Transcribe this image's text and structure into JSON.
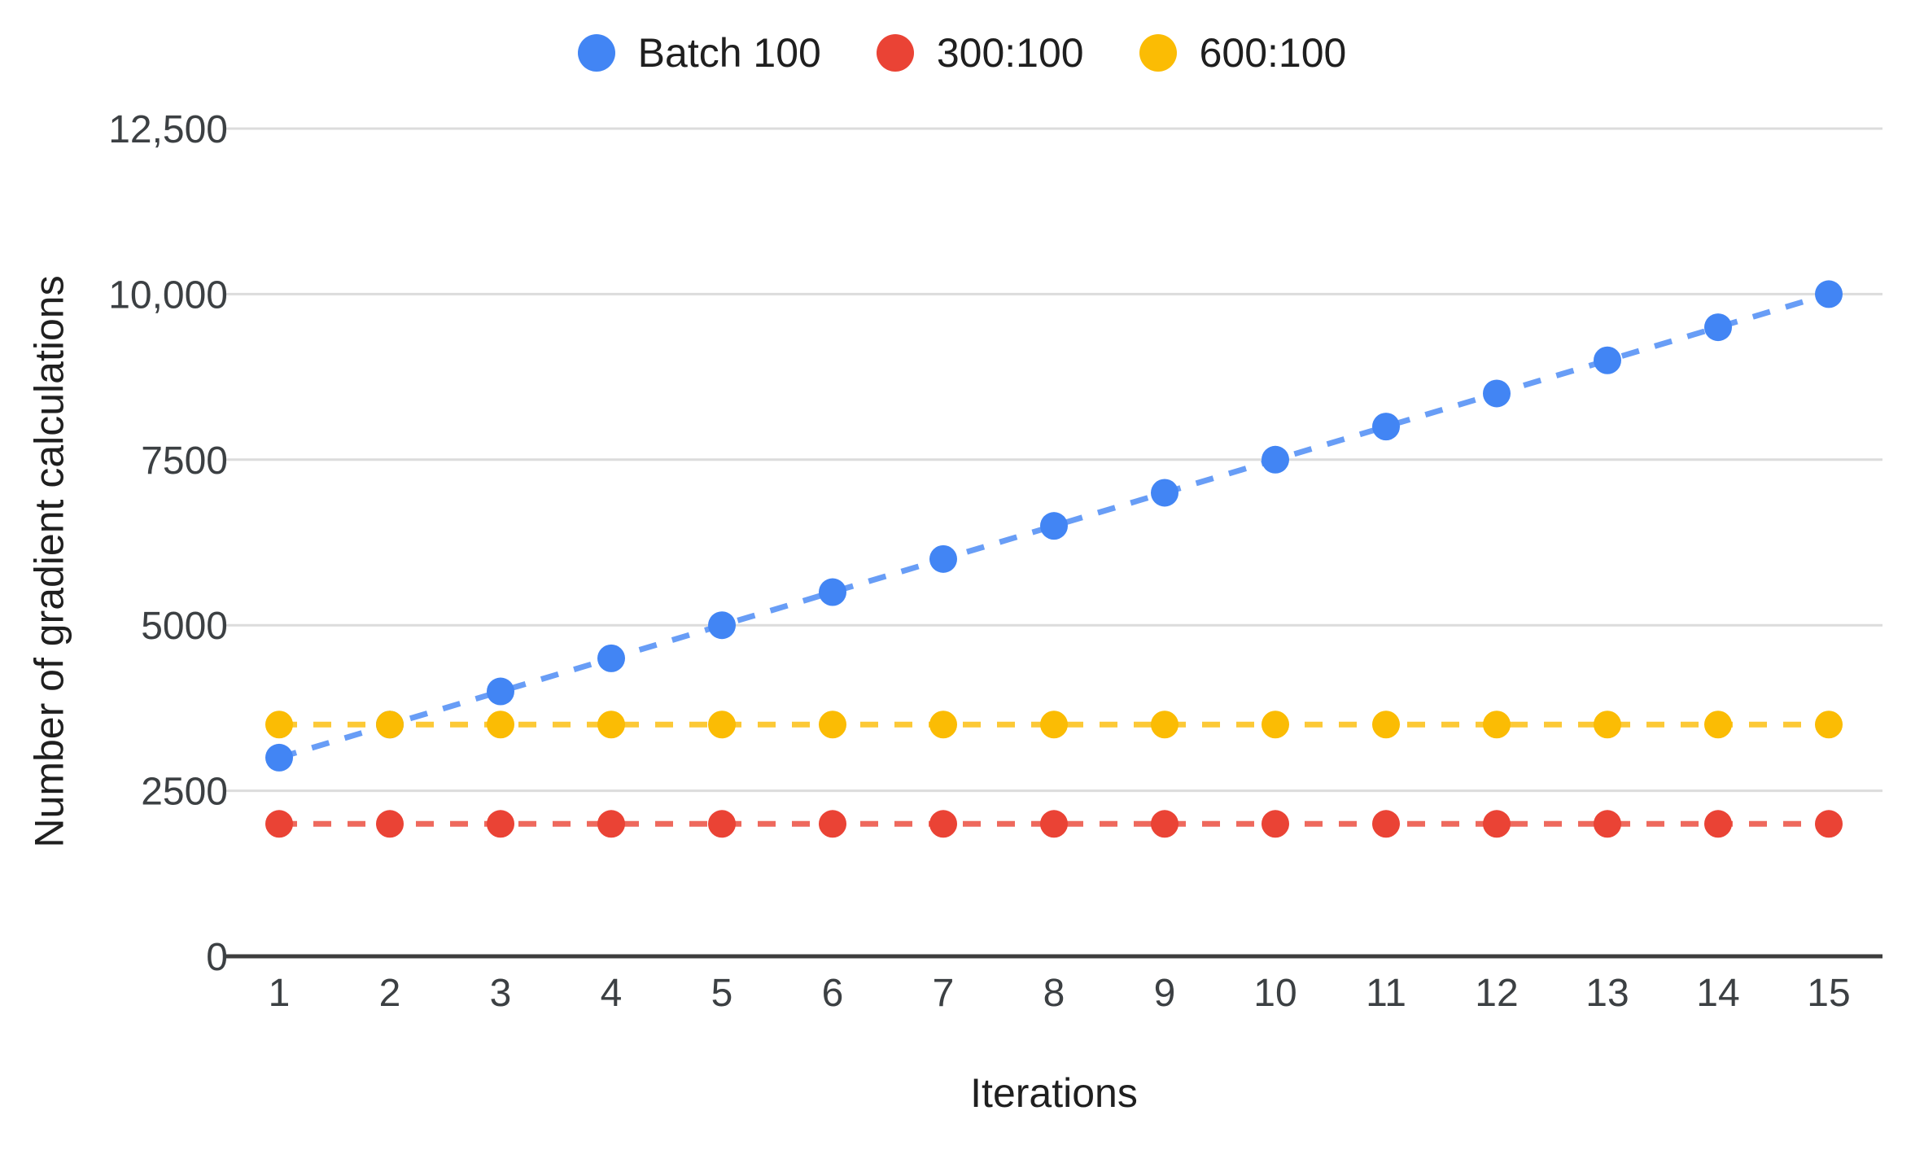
{
  "chart_data": {
    "type": "scatter",
    "title": "",
    "xlabel": "Iterations",
    "ylabel": "Number of gradient calculations",
    "categories": [
      1,
      2,
      3,
      4,
      5,
      6,
      7,
      8,
      9,
      10,
      11,
      12,
      13,
      14,
      15
    ],
    "series": [
      {
        "name": "Batch 100",
        "color": "#4285F4",
        "values": [
          3000,
          3500,
          4000,
          4500,
          5000,
          5500,
          6000,
          6500,
          7000,
          7500,
          8000,
          8500,
          9000,
          9500,
          10000
        ]
      },
      {
        "name": "300:100",
        "color": "#EA4335",
        "values": [
          2000,
          2000,
          2000,
          2000,
          2000,
          2000,
          2000,
          2000,
          2000,
          2000,
          2000,
          2000,
          2000,
          2000,
          2000
        ]
      },
      {
        "name": "600:100",
        "color": "#FBBC04",
        "values": [
          3500,
          3500,
          3500,
          3500,
          3500,
          3500,
          3500,
          3500,
          3500,
          3500,
          3500,
          3500,
          3500,
          3500,
          3500
        ]
      }
    ],
    "ylim": [
      0,
      12500
    ],
    "yticks": [
      {
        "value": 0,
        "label": "0"
      },
      {
        "value": 2500,
        "label": "2500"
      },
      {
        "value": 5000,
        "label": "5000"
      },
      {
        "value": 7500,
        "label": "7500"
      },
      {
        "value": 10000,
        "label": "10,000"
      },
      {
        "value": 12500,
        "label": "12,500"
      }
    ],
    "grid": true,
    "legend_position": "top",
    "line_style": "dashed",
    "marker": "circle"
  },
  "styles": {
    "background": "#ffffff",
    "grid_color": "#dcdcdc",
    "axis_color": "#3d3d3d",
    "tick_color": "#3c4043",
    "text_color": "#1f1f1f"
  }
}
